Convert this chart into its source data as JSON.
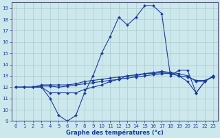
{
  "bg_color": "#cce8ed",
  "line_color": "#1a3a9e",
  "grid_color": "#aacccc",
  "xlabel": "Graphe des températures (°c)",
  "xlabel_color": "#1a3a9e",
  "ylabel_color": "#1a3a9e",
  "xlim": [
    -0.5,
    23.5
  ],
  "ylim": [
    9,
    19.5
  ],
  "yticks": [
    9,
    10,
    11,
    12,
    13,
    14,
    15,
    16,
    17,
    18,
    19
  ],
  "xticks": [
    0,
    1,
    2,
    3,
    4,
    5,
    6,
    7,
    8,
    9,
    10,
    11,
    12,
    13,
    14,
    15,
    16,
    17,
    18,
    19,
    20,
    21,
    22,
    23
  ],
  "lines": [
    {
      "x": [
        0,
        1,
        2,
        3,
        4,
        5,
        6,
        7,
        8,
        9,
        10,
        11,
        12,
        13,
        14,
        15,
        16,
        17,
        18,
        19,
        20,
        21,
        22,
        23
      ],
      "y": [
        12,
        12,
        12,
        12,
        11,
        9.5,
        9,
        9.5,
        11.5,
        13,
        15,
        16.5,
        18.2,
        17.5,
        18.2,
        19.2,
        19.2,
        18.5,
        13,
        13.5,
        13.5,
        11.5,
        12.5,
        13
      ]
    },
    {
      "x": [
        0,
        1,
        2,
        3,
        4,
        5,
        6,
        7,
        8,
        9,
        10,
        11,
        12,
        13,
        14,
        15,
        16,
        17,
        18,
        19,
        20,
        21,
        22,
        23
      ],
      "y": [
        12,
        12,
        12,
        12.2,
        12.2,
        12.2,
        12.2,
        12.3,
        12.5,
        12.6,
        12.7,
        12.8,
        12.9,
        13.0,
        13.1,
        13.2,
        13.3,
        13.4,
        13.3,
        13.2,
        13.0,
        12.5,
        12.5,
        13.0
      ]
    },
    {
      "x": [
        0,
        1,
        2,
        3,
        4,
        5,
        6,
        7,
        8,
        9,
        10,
        11,
        12,
        13,
        14,
        15,
        16,
        17,
        18,
        19,
        20,
        21,
        22,
        23
      ],
      "y": [
        12,
        12,
        12,
        12.1,
        12.1,
        12.0,
        12.1,
        12.2,
        12.3,
        12.4,
        12.5,
        12.6,
        12.7,
        12.8,
        12.9,
        13.0,
        13.1,
        13.2,
        13.2,
        13.0,
        12.9,
        12.6,
        12.6,
        12.9
      ]
    },
    {
      "x": [
        0,
        1,
        2,
        3,
        4,
        5,
        6,
        7,
        8,
        9,
        10,
        11,
        12,
        13,
        14,
        15,
        16,
        17,
        18,
        19,
        20,
        21,
        22,
        23
      ],
      "y": [
        12,
        12,
        12,
        12,
        11.5,
        11.5,
        11.5,
        11.5,
        11.8,
        12.0,
        12.2,
        12.5,
        12.7,
        13.0,
        13.0,
        13.2,
        13.2,
        13.3,
        13.3,
        13.0,
        12.5,
        11.5,
        12.5,
        13.0
      ]
    }
  ]
}
